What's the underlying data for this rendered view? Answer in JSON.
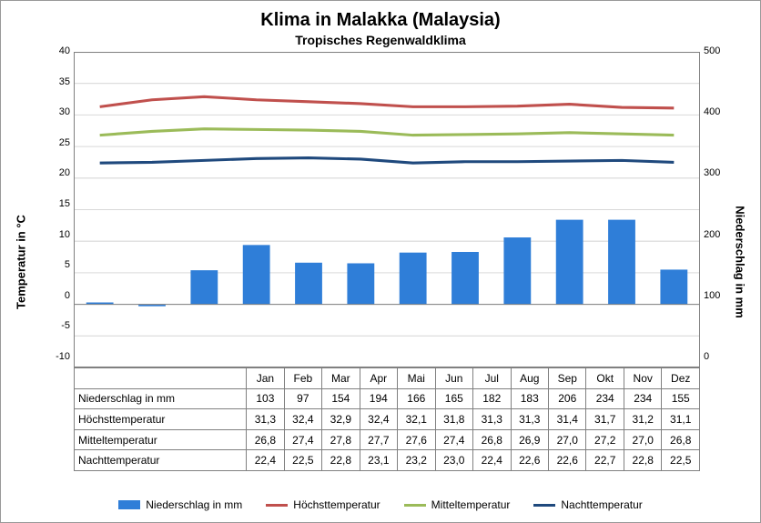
{
  "title": "Klima in Malakka (Malaysia)",
  "subtitle": "Tropisches Regenwaldklima",
  "y_left": {
    "label": "Temperatur in °C",
    "min": -10,
    "max": 40,
    "step": 5
  },
  "y_right": {
    "label": "Niederschlag in mm",
    "min": 0,
    "max": 500,
    "step": 100
  },
  "categories": [
    "Jan",
    "Feb",
    "Mar",
    "Apr",
    "Mai",
    "Jun",
    "Jul",
    "Aug",
    "Sep",
    "Okt",
    "Nov",
    "Dez"
  ],
  "series": {
    "niederschlag": {
      "label": "Niederschlag in mm",
      "type": "bar",
      "axis": "right",
      "color": "#2f7ed8",
      "values": [
        103,
        97,
        154,
        194,
        166,
        165,
        182,
        183,
        206,
        234,
        234,
        155
      ],
      "display": [
        "103",
        "97",
        "154",
        "194",
        "166",
        "165",
        "182",
        "183",
        "206",
        "234",
        "234",
        "155"
      ]
    },
    "hoechst": {
      "label": "Höchsttemperatur",
      "type": "line",
      "axis": "left",
      "color": "#c0504d",
      "width": 3,
      "values": [
        31.3,
        32.4,
        32.9,
        32.4,
        32.1,
        31.8,
        31.3,
        31.3,
        31.4,
        31.7,
        31.2,
        31.1
      ],
      "display": [
        "31,3",
        "32,4",
        "32,9",
        "32,4",
        "32,1",
        "31,8",
        "31,3",
        "31,3",
        "31,4",
        "31,7",
        "31,2",
        "31,1"
      ]
    },
    "mittel": {
      "label": "Mitteltemperatur",
      "type": "line",
      "axis": "left",
      "color": "#9bbb59",
      "width": 3,
      "values": [
        26.8,
        27.4,
        27.8,
        27.7,
        27.6,
        27.4,
        26.8,
        26.9,
        27.0,
        27.2,
        27.0,
        26.8
      ],
      "display": [
        "26,8",
        "27,4",
        "27,8",
        "27,7",
        "27,6",
        "27,4",
        "26,8",
        "26,9",
        "27,0",
        "27,2",
        "27,0",
        "26,8"
      ]
    },
    "nacht": {
      "label": "Nachttemperatur",
      "type": "line",
      "axis": "left",
      "color": "#1f497d",
      "width": 3,
      "values": [
        22.4,
        22.5,
        22.8,
        23.1,
        23.2,
        23.0,
        22.4,
        22.6,
        22.6,
        22.7,
        22.8,
        22.5
      ],
      "display": [
        "22,4",
        "22,5",
        "22,8",
        "23,1",
        "23,2",
        "23,0",
        "22,4",
        "22,6",
        "22,6",
        "22,7",
        "22,8",
        "22,5"
      ]
    }
  },
  "table_rows": [
    "niederschlag",
    "hoechst",
    "mittel",
    "nacht"
  ],
  "legend_order": [
    "niederschlag",
    "hoechst",
    "mittel",
    "nacht"
  ],
  "grid_color": "#d9d9d9",
  "axis_color": "#808080",
  "bar_width_ratio": 0.52
}
